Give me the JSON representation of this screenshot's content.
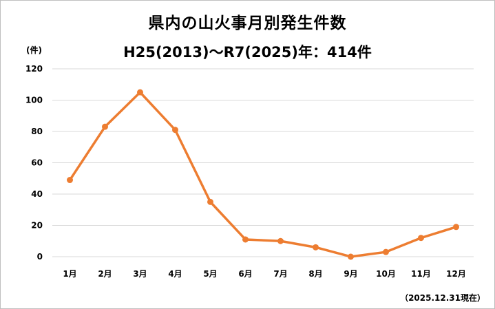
{
  "chart_data": {
    "type": "line",
    "title": "県内の山火事月別発生件数",
    "subtitle": "H25(2013)～R7(2025)年：414件",
    "ylabel": "(件)",
    "xlabel": "",
    "categories": [
      "1月",
      "2月",
      "3月",
      "4月",
      "5月",
      "6月",
      "7月",
      "8月",
      "9月",
      "10月",
      "11月",
      "12月"
    ],
    "values": [
      49,
      83,
      105,
      81,
      35,
      11,
      10,
      6,
      0,
      3,
      12,
      19
    ],
    "ylim": [
      0,
      120
    ],
    "yticks": [
      0,
      20,
      40,
      60,
      80,
      100,
      120
    ],
    "grid": true,
    "legend": "none",
    "note": "（2025.12.31現在）",
    "colors": {
      "line": "#ed7d31",
      "grid": "#d9d9d9"
    }
  }
}
